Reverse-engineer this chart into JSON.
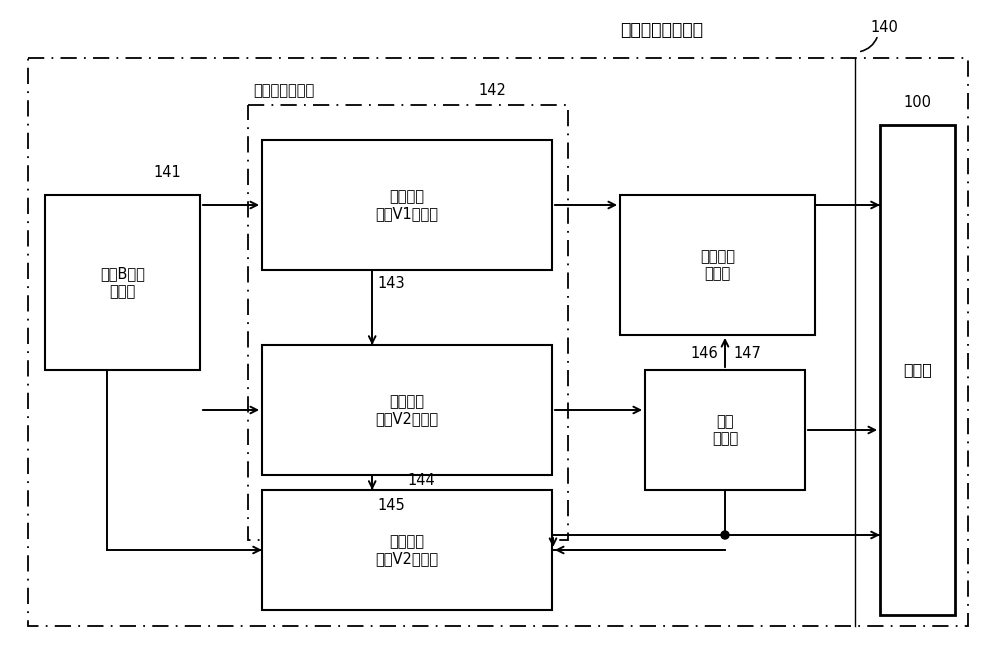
{
  "fig_width": 10.0,
  "fig_height": 6.53,
  "bg_color": "#ffffff",
  "title_140": "甩負荷保護判定部",
  "label_140": "140",
  "label_141": "141",
  "label_142": "142",
  "label_143": "143",
  "label_144": "144",
  "label_145": "145",
  "label_146": "146",
  "label_147": "147",
  "label_100": "100",
  "box_141_text": "端子B電壓\n檢測部",
  "box_142_text": "閾值電壓判定部",
  "box_v1_text": "第一閾值\n電壓V1判定部",
  "box_v2a_text": "第二閾值\n電壓V2判定部",
  "box_v2b_text": "第三閾值\n電壓V2判定部",
  "box_protect_text": "保護模式\n判定部",
  "box_signal_text": "信號\n產生部",
  "box_control_text": "控制部",
  "line_color": "#000000",
  "font_size_box": 10.5,
  "font_size_label": 10.5,
  "font_size_title": 12.5
}
